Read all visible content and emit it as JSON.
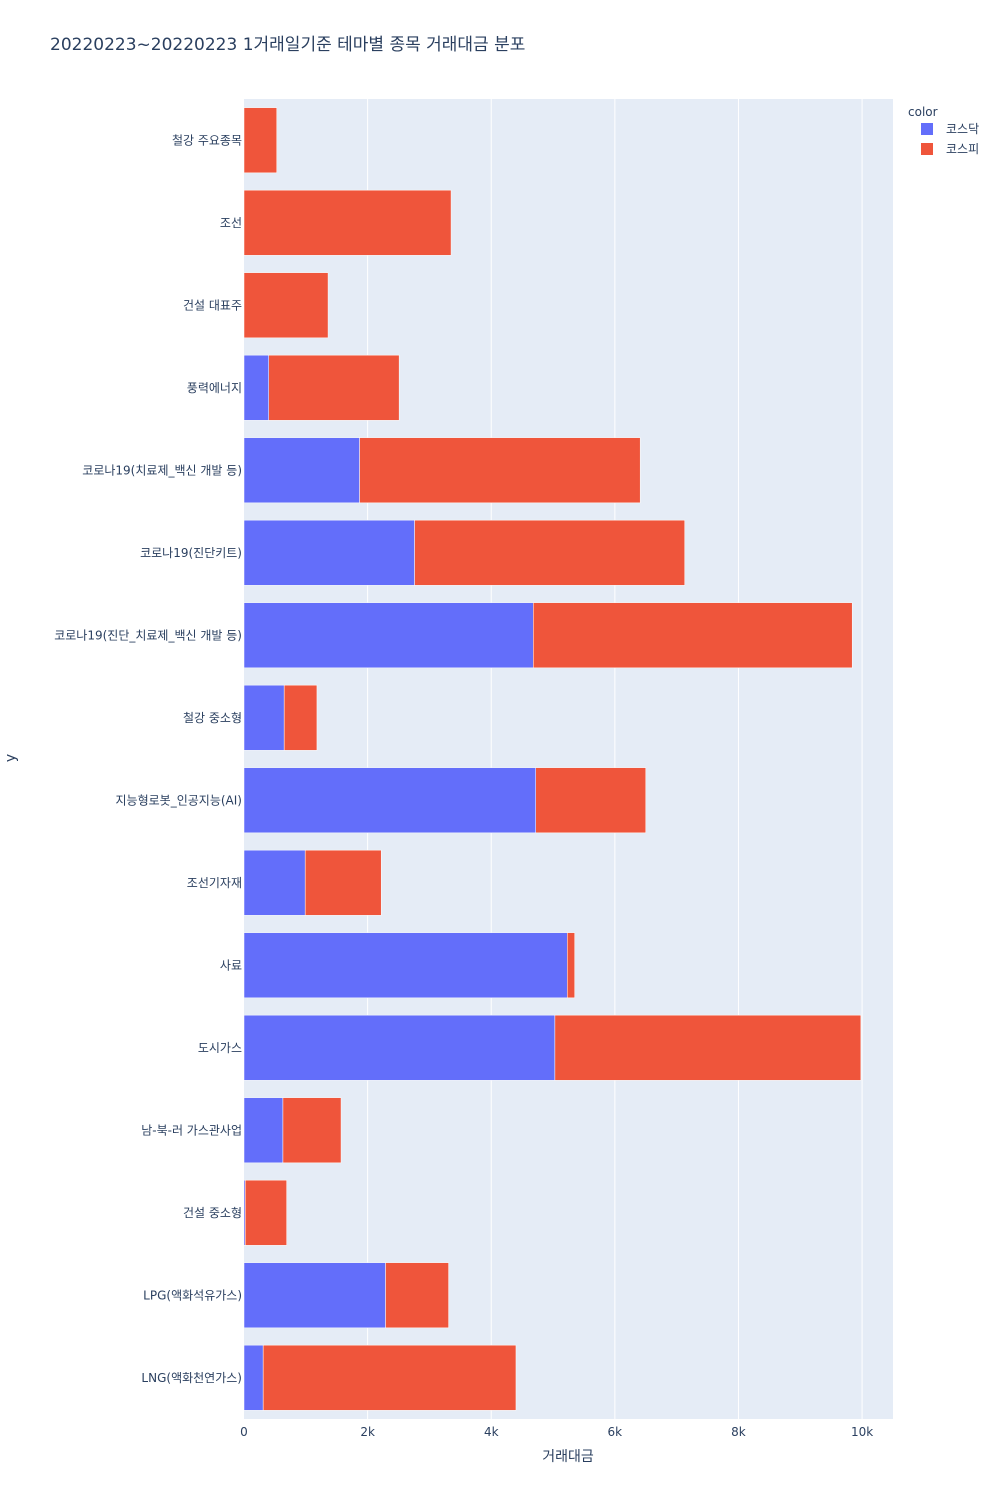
{
  "chart_data": {
    "type": "bar",
    "orientation": "horizontal",
    "barmode": "stack",
    "title": "20220223~20220223 1거래일기준 테마별 종목 거래대금 분포",
    "xlabel": "거래대금",
    "ylabel": "y",
    "xlim": [
      0,
      10500
    ],
    "xticks": [
      0,
      2000,
      4000,
      6000,
      8000,
      10000
    ],
    "xtick_labels": [
      "0",
      "2k",
      "4k",
      "6k",
      "8k",
      "10k"
    ],
    "grid": true,
    "legend_title": "color",
    "legend_position": "top-right",
    "categories": [
      "철강 주요종목",
      "조선",
      "건설 대표주",
      "풍력에너지",
      "코로나19(치료제_백신 개발 등)",
      "코로나19(진단키트)",
      "코로나19(진단_치료제_백신 개발 등)",
      "철강 중소형",
      "지능형로봇_인공지능(AI)",
      "조선기자재",
      "사료",
      "도시가스",
      "남-북-러 가스관사업",
      "건설 중소형",
      "LPG(액화석유가스)",
      "LNG(액화천연가스)"
    ],
    "series": [
      {
        "name": "코스닥",
        "color": "#636efa",
        "values": [
          0,
          0,
          0,
          400,
          1870,
          2760,
          4680,
          650,
          4720,
          990,
          5230,
          5030,
          630,
          20,
          2290,
          310
        ]
      },
      {
        "name": "코스피",
        "color": "#ef553b",
        "values": [
          530,
          3350,
          1360,
          2110,
          4540,
          4370,
          5160,
          530,
          1780,
          1230,
          120,
          4950,
          940,
          670,
          1020,
          4090
        ]
      }
    ]
  }
}
